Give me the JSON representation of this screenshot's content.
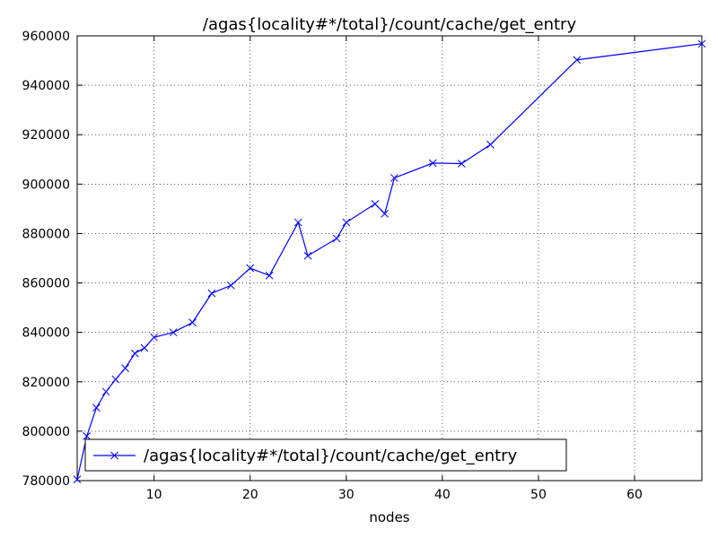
{
  "chart_data": {
    "type": "line",
    "title": "/agas{locality#*/total}/count/cache/get_entry",
    "xlabel": "nodes",
    "ylabel": "",
    "xlim": [
      2,
      67
    ],
    "ylim": [
      780000,
      960000
    ],
    "xticks": [
      10,
      20,
      30,
      40,
      50,
      60
    ],
    "yticks": [
      780000,
      800000,
      820000,
      840000,
      860000,
      880000,
      900000,
      920000,
      940000,
      960000
    ],
    "grid": true,
    "legend": "lower-left",
    "series": [
      {
        "name": "/agas{locality#*/total}/count/cache/get_entry",
        "color": "#0000ff",
        "marker": "x",
        "x": [
          2,
          3,
          4,
          5,
          6,
          7,
          8,
          9,
          10,
          12,
          14,
          16,
          18,
          20,
          22,
          25,
          26,
          29,
          30,
          33,
          34,
          35,
          39,
          42,
          45,
          54,
          67
        ],
        "y": [
          780500,
          798000,
          809500,
          816000,
          821000,
          825500,
          831500,
          833700,
          838000,
          840000,
          844000,
          855800,
          859000,
          866000,
          863000,
          884500,
          871000,
          878000,
          884500,
          892000,
          888000,
          902500,
          908500,
          908300,
          916000,
          950300,
          956800
        ]
      }
    ]
  }
}
